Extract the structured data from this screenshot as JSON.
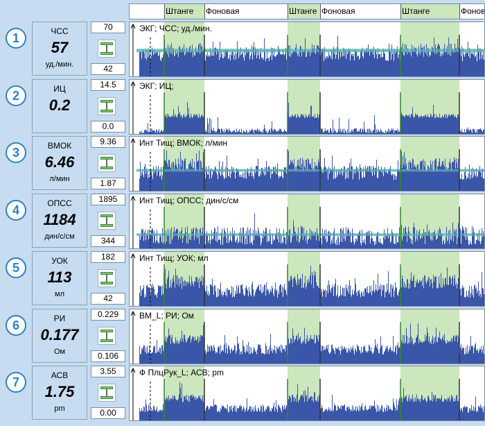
{
  "header": {
    "segments": [
      "Штанге",
      "Фоновая",
      "Штанге",
      "Фоновая",
      "Штанге",
      "Фоновая"
    ]
  },
  "colors": {
    "highlight": "#cce6bd",
    "trace": "#3a56a8",
    "band": "#6fc2c0",
    "numbers": "#2b82c8"
  },
  "chart_data": [
    {
      "type": "area",
      "index": "1",
      "name": "ЧСС",
      "value": "57",
      "unit": "уд./мин.",
      "scale_max": "70",
      "scale_min": "42",
      "title": "ЭКГ; ЧСС; уд./мин.",
      "base": 0.55,
      "stim": 0.65,
      "noise": 0.35,
      "band": [
        0.58,
        0.66
      ]
    },
    {
      "type": "area",
      "index": "2",
      "name": "ИЦ",
      "value": "0.2",
      "unit": "",
      "scale_max": "14.5",
      "scale_min": "0.0",
      "title": "ЭКГ; ИЦ;",
      "base": 0.08,
      "stim": 0.45,
      "noise": 0.12,
      "band": null
    },
    {
      "type": "area",
      "index": "3",
      "name": "ВМОК",
      "value": "6.46",
      "unit": "л/мин",
      "scale_max": "9.36",
      "scale_min": "1.87",
      "title": "Инт Тищ; ВМОК; л/мин",
      "base": 0.45,
      "stim": 0.65,
      "noise": 0.35,
      "band": [
        0.46,
        0.52
      ]
    },
    {
      "type": "area",
      "index": "4",
      "name": "ОПСС",
      "value": "1184",
      "unit": "дин/с/см",
      "scale_max": "1895",
      "scale_min": "344",
      "title": "Инт Тищ; ОПСС; дин/с/см",
      "base": 0.3,
      "stim": 0.32,
      "noise": 0.45,
      "band": [
        0.3,
        0.36
      ]
    },
    {
      "type": "area",
      "index": "5",
      "name": "УОК",
      "value": "113",
      "unit": "мл",
      "scale_max": "182",
      "scale_min": "42",
      "title": "Инт Тищ; УОК; мл",
      "base": 0.38,
      "stim": 0.6,
      "noise": 0.35,
      "band": null
    },
    {
      "type": "area",
      "index": "6",
      "name": "РИ",
      "value": "0.177",
      "unit": "Ом",
      "scale_max": "0.229",
      "scale_min": "0.106",
      "title": "ВМ_L; РИ; Ом",
      "base": 0.35,
      "stim": 0.6,
      "noise": 0.25,
      "band": null
    },
    {
      "type": "area",
      "index": "7",
      "name": "АСВ",
      "value": "1.75",
      "unit": "pm",
      "scale_max": "3.55",
      "scale_min": "0.00",
      "title": "Ф ПлцРук_L; АСВ; pm",
      "base": 0.3,
      "stim": 0.55,
      "noise": 0.2,
      "band": null
    }
  ]
}
